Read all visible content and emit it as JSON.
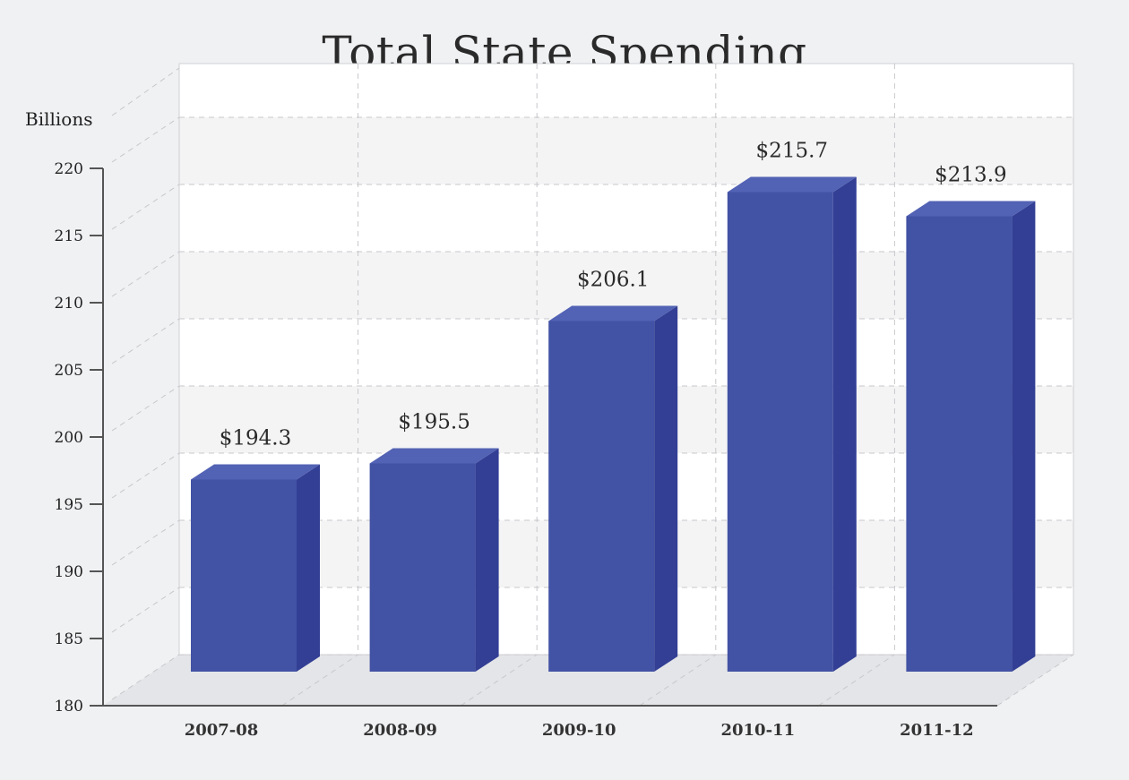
{
  "chart_data": {
    "type": "bar",
    "title": "Total State Spending",
    "ylabel": "Billions",
    "xlabel": "",
    "categories": [
      "2007-08",
      "2008-09",
      "2009-10",
      "2010-11",
      "2011-12"
    ],
    "values": [
      194.3,
      195.5,
      206.1,
      215.7,
      213.9
    ],
    "value_labels": [
      "$194.3",
      "$195.5",
      "$206.1",
      "$215.7",
      "$213.9"
    ],
    "ylim": [
      180,
      220
    ],
    "yticks": [
      180,
      185,
      190,
      195,
      200,
      205,
      210,
      215,
      220
    ],
    "grid": true,
    "bar_color": "#4252a4",
    "bar_side_color": "#333f94",
    "bar_top_color": "#5262b4"
  }
}
